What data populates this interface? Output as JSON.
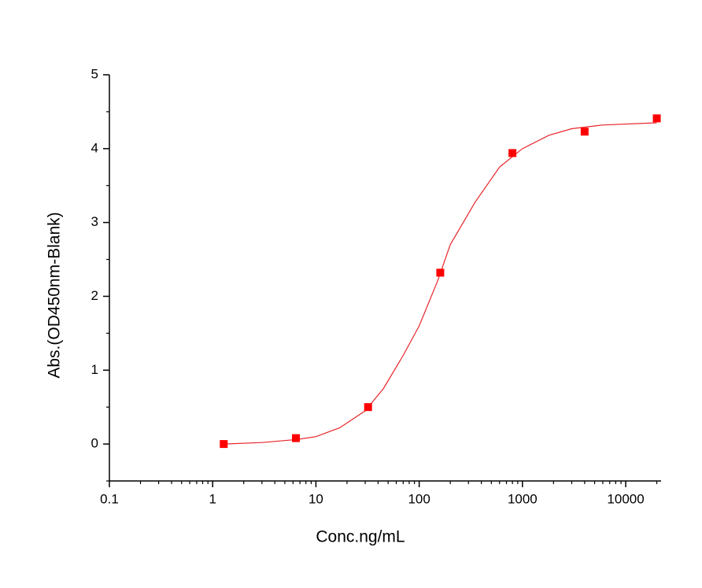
{
  "chart_data": {
    "type": "scatter",
    "x_label": "Conc.ng/mL",
    "y_label": "Abs.(OD450nm-Blank)",
    "xscale": "log",
    "xlim": [
      0.1,
      22000
    ],
    "ylim": [
      -0.5,
      5
    ],
    "xticks": [
      0.1,
      1,
      10,
      100,
      1000,
      10000
    ],
    "yticks": [
      0,
      1,
      2,
      3,
      4,
      5
    ],
    "grid": false,
    "series": [
      {
        "type": "scatter",
        "color": "#ff0000",
        "x": [
          1.28,
          6.4,
          32,
          160,
          800,
          4000,
          20000
        ],
        "values": [
          0.0,
          0.08,
          0.5,
          2.32,
          3.94,
          4.23,
          4.41
        ]
      },
      {
        "type": "line",
        "color": "#e8262b",
        "x": [
          1.28,
          3,
          6.4,
          10,
          17,
          30,
          45,
          70,
          100,
          150,
          200,
          350,
          600,
          1000,
          1800,
          3000,
          6000,
          20000
        ],
        "values": [
          0.0,
          0.02,
          0.06,
          0.1,
          0.22,
          0.45,
          0.75,
          1.2,
          1.6,
          2.2,
          2.7,
          3.28,
          3.75,
          4.0,
          4.18,
          4.27,
          4.32,
          4.35
        ]
      }
    ]
  }
}
